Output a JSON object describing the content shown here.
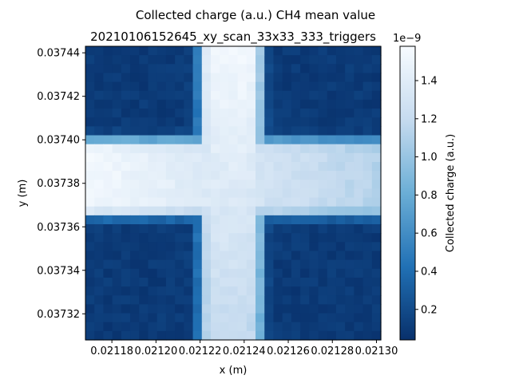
{
  "chart_data": {
    "type": "heatmap",
    "title": "Collected charge (a.u.) CH4 mean value",
    "subtitle": "20210106152645_xy_scan_33x33_333_triggers",
    "xlabel": "x (m)",
    "ylabel": "y (m)",
    "x_ticks": [
      "0.02118",
      "0.02120",
      "0.02122",
      "0.02124",
      "0.02126",
      "0.02128",
      "0.02130"
    ],
    "x_tick_values": [
      0.02118,
      0.0212,
      0.02122,
      0.02124,
      0.02126,
      0.02128,
      0.0213
    ],
    "xlim": [
      0.021168,
      0.021302
    ],
    "y_ticks": [
      "0.03744",
      "0.03742",
      "0.03740",
      "0.03738",
      "0.03736",
      "0.03734",
      "0.03732"
    ],
    "y_tick_values": [
      0.03744,
      0.03742,
      0.0374,
      0.03738,
      0.03736,
      0.03734,
      0.03732
    ],
    "ylim": [
      0.037308,
      0.037443
    ],
    "grid": {
      "nx": 33,
      "ny": 33
    },
    "pattern": {
      "background": 0.1,
      "vertical_band_x": [
        0.02122,
        0.021248
      ],
      "horizontal_band_y": [
        0.037365,
        0.0374
      ],
      "peak_value": 1.55
    },
    "colorbar": {
      "label": "Collected charge (a.u.)",
      "offset_label": "1e−9",
      "ticks": [
        "0.2",
        "0.4",
        "0.6",
        "0.8",
        "1.0",
        "1.2",
        "1.4"
      ],
      "tick_values": [
        0.2,
        0.4,
        0.6,
        0.8,
        1.0,
        1.2,
        1.4
      ],
      "range": [
        0.04,
        1.58
      ],
      "colormap": "Blues_r",
      "colors": [
        "#08306b",
        "#2171b5",
        "#6baed6",
        "#c6dbef",
        "#f7fbff"
      ]
    }
  }
}
